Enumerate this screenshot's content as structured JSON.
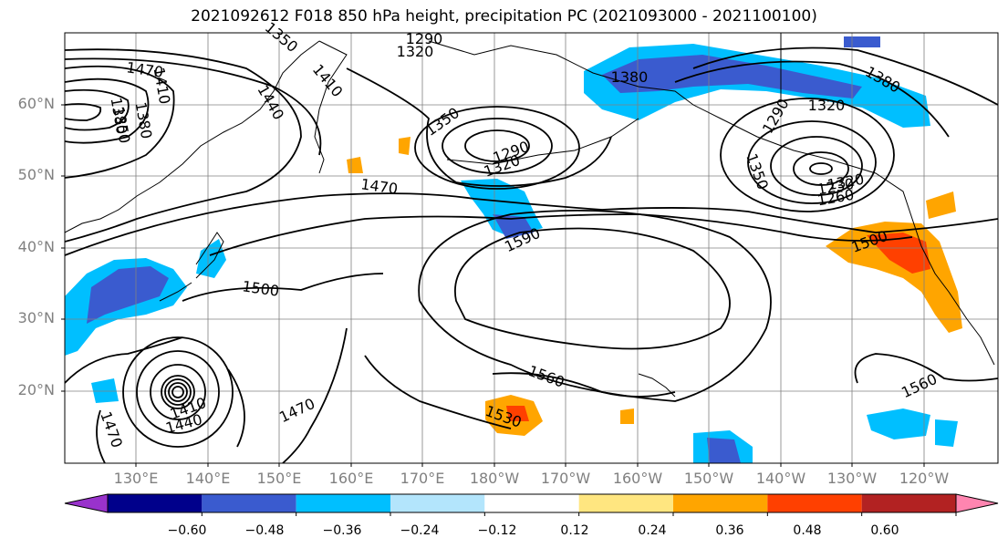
{
  "title": "2021092612 F018 850 hPa height, precipitation PC (2021093000 - 2021100100)",
  "lat_labels": [
    "60°N",
    "50°N",
    "40°N",
    "30°N",
    "20°N"
  ],
  "lon_labels": [
    "130°E",
    "140°E",
    "150°E",
    "160°E",
    "170°E",
    "180°W",
    "170°W",
    "160°W",
    "150°W",
    "140°W",
    "130°W",
    "120°W"
  ],
  "contour_labels": [
    "1470",
    "1290",
    "1320",
    "1350",
    "1380",
    "1410",
    "1440",
    "1410",
    "1350",
    "1380",
    "1350",
    "1290",
    "1320",
    "1290",
    "1320",
    "1380",
    "1320",
    "1350",
    "1230",
    "1260",
    "1470",
    "1590",
    "1500",
    "1500",
    "1560",
    "1560",
    "1530",
    "1470",
    "1410",
    "1440",
    "1470",
    "1380"
  ],
  "colorbar": {
    "colors": [
      "#9932cc",
      "#00008b",
      "#3a5bcf",
      "#00bfff",
      "#b3e5fc",
      "#ffffff",
      "#ffe680",
      "#ffa500",
      "#ff4000",
      "#b22222",
      "#ff85b0"
    ],
    "ticks": [
      "−0.60",
      "−0.48",
      "−0.36",
      "−0.24",
      "−0.12",
      "0.12",
      "0.24",
      "0.36",
      "0.48",
      "0.60"
    ]
  }
}
